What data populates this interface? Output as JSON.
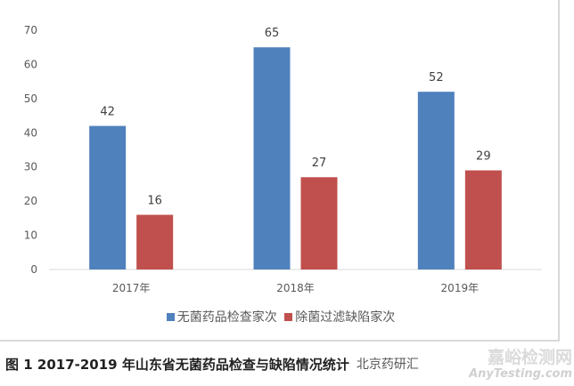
{
  "chart_data": {
    "type": "bar",
    "categories": [
      "2017年",
      "2018年",
      "2019年"
    ],
    "series": [
      {
        "name": "无菌药品检查家次",
        "values": [
          42,
          65,
          52
        ],
        "color": "#4f81bd"
      },
      {
        "name": "除菌过滤缺陷家次",
        "values": [
          16,
          27,
          29
        ],
        "color": "#c0504d"
      }
    ],
    "ylim": [
      0,
      70
    ],
    "yticks": [
      0,
      10,
      20,
      30,
      40,
      50,
      60,
      70
    ],
    "grid": false,
    "legend": "bottom",
    "title": "图 1   2017-2019 年山东省无菌药品检查与缺陷情况统计"
  },
  "watermarks": {
    "source": "北京药研汇",
    "site": "嘉峪检测网",
    "site_en": "AnyTesting.com"
  }
}
